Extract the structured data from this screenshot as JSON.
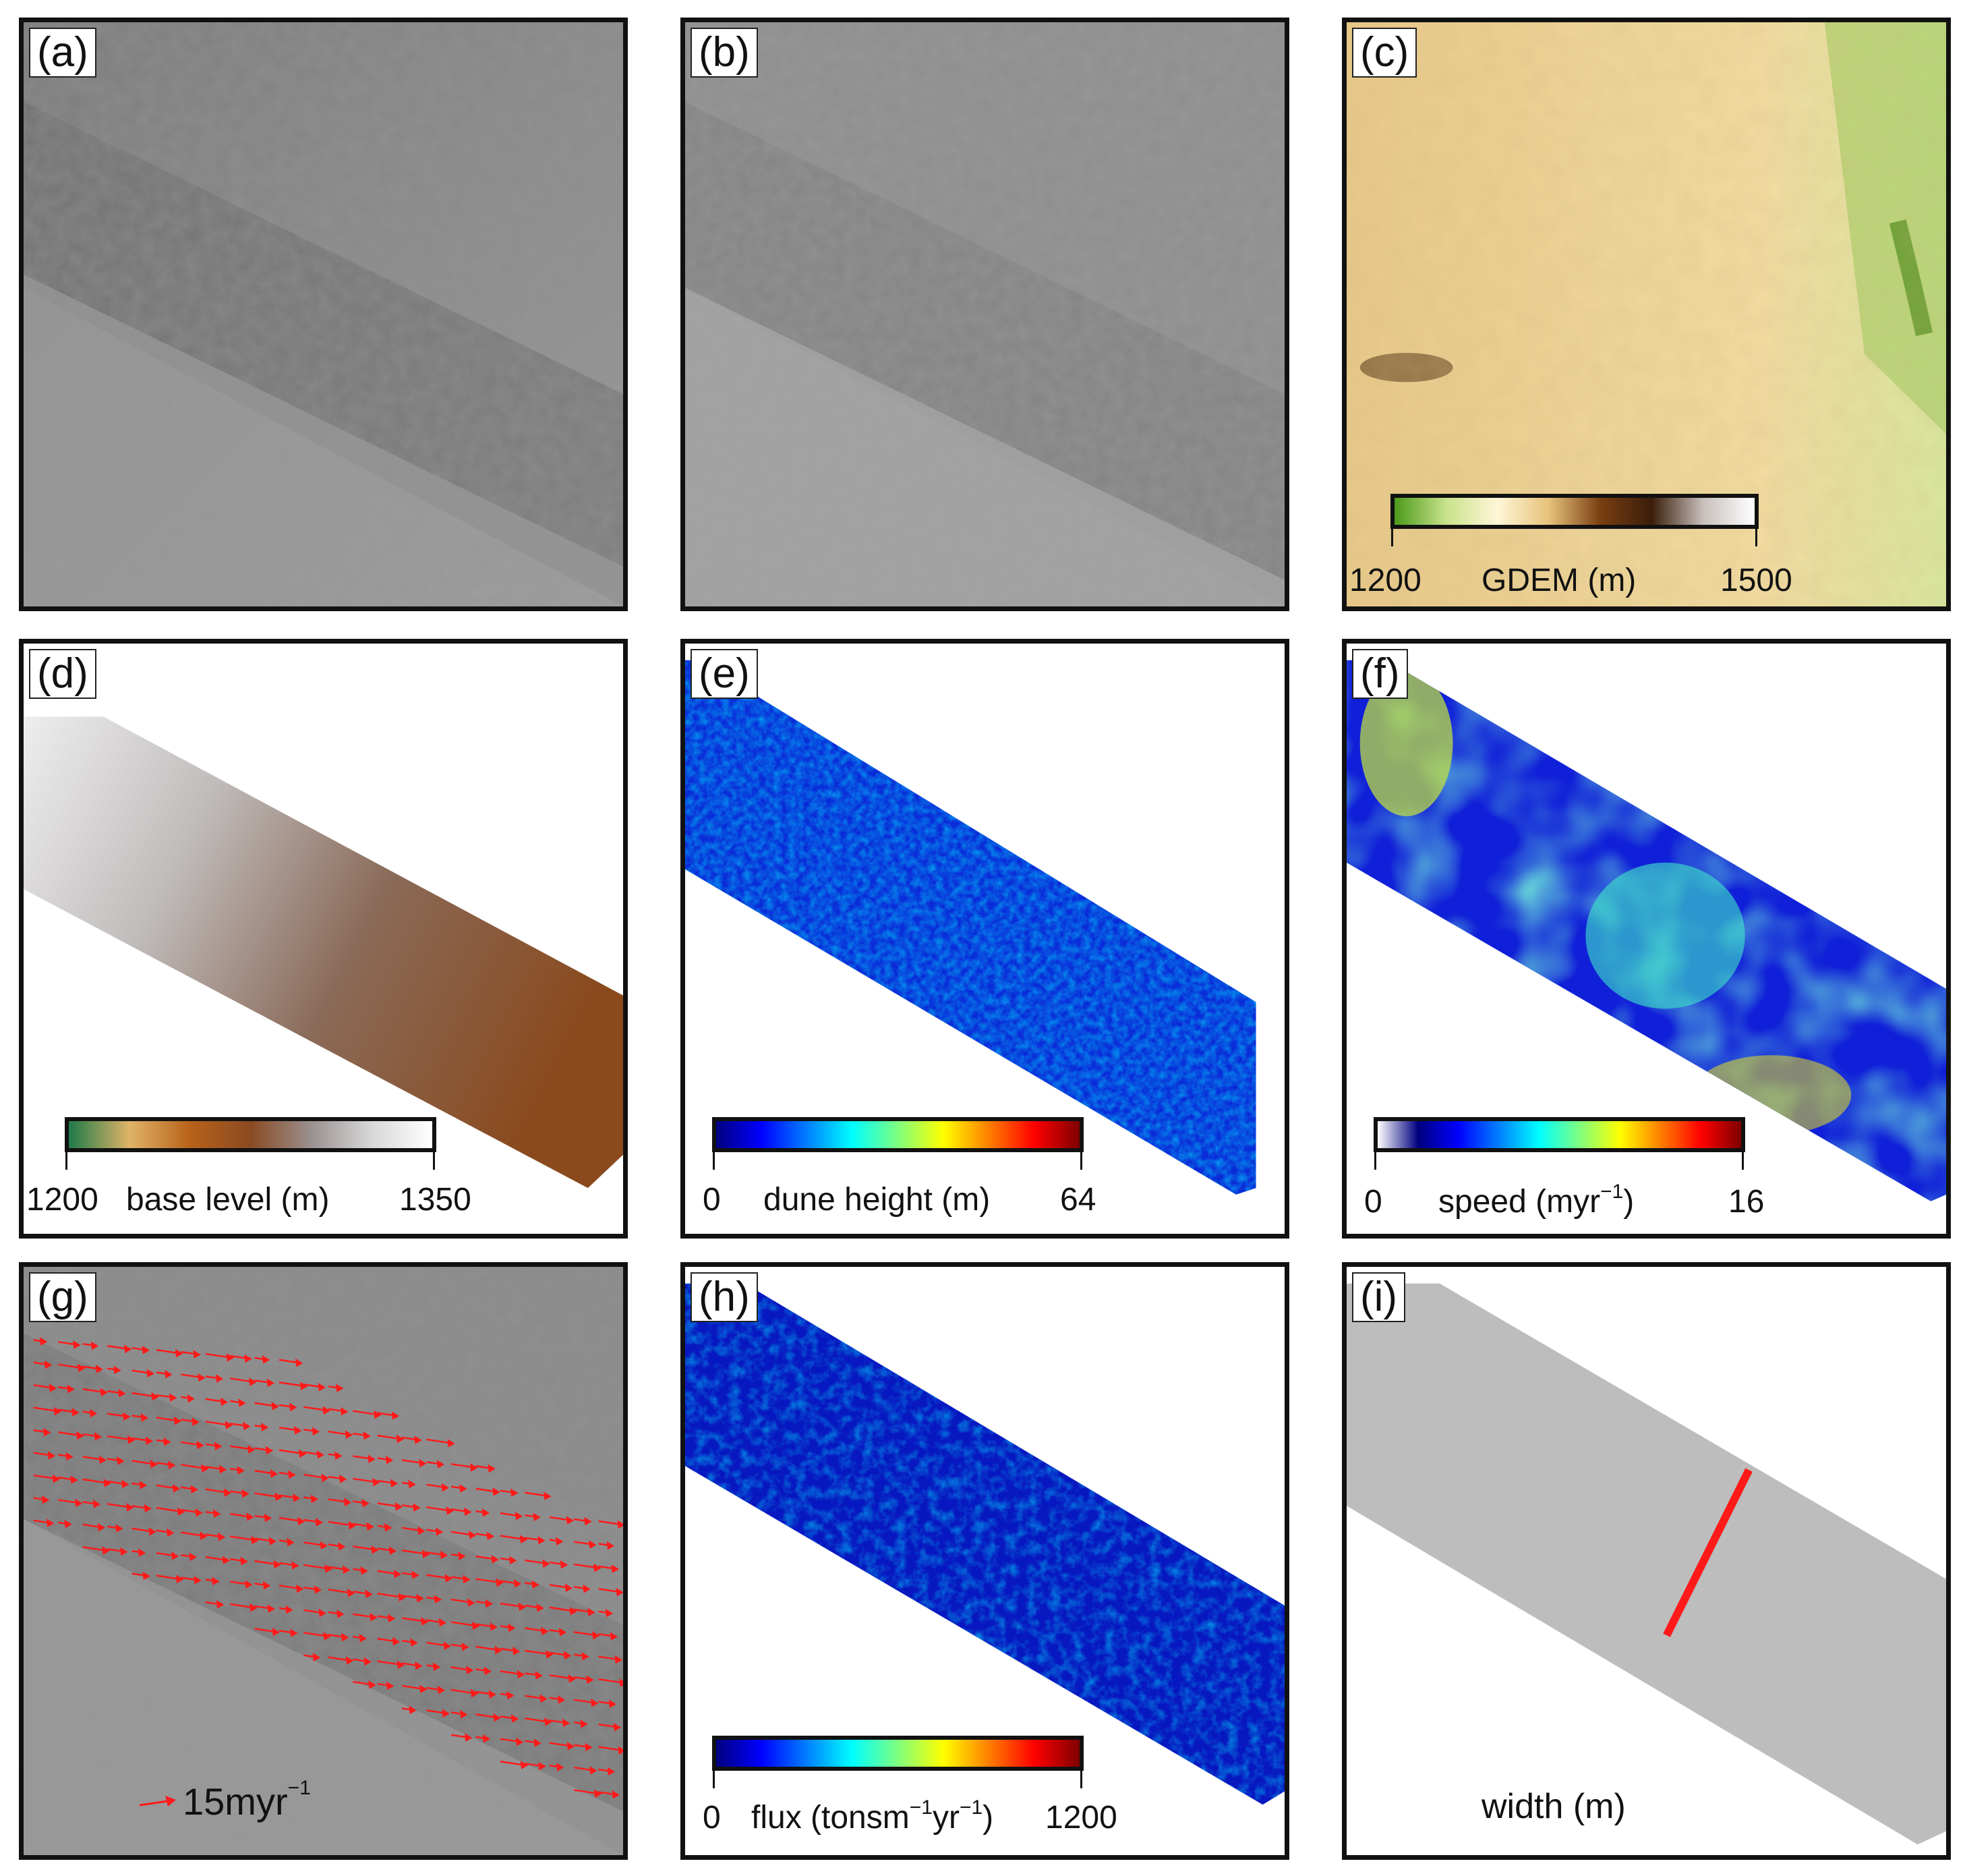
{
  "panels": [
    {
      "id": "a",
      "label": "(a)"
    },
    {
      "id": "b",
      "label": "(b)"
    },
    {
      "id": "c",
      "label": "(c)",
      "colorbar": {
        "min": "1200",
        "max": "1500",
        "title": "GDEM (m)",
        "stops": [
          "#4a9a1a",
          "#c8e28a",
          "#fff6d8",
          "#e6c27a",
          "#7a3e12",
          "#3a1e0a",
          "#c8c0bc",
          "#ffffff"
        ]
      }
    },
    {
      "id": "d",
      "label": "(d)",
      "colorbar": {
        "min": "1200",
        "max": "1350",
        "title": "base level (m)",
        "stops": [
          "#1e7a48",
          "#e0b468",
          "#b8621a",
          "#8a4a22",
          "#9a9090",
          "#d8d8d8",
          "#ffffff"
        ]
      }
    },
    {
      "id": "e",
      "label": "(e)",
      "colorbar": {
        "min": "0",
        "max": "64",
        "title": "dune height (m)",
        "stops": [
          "#00007f",
          "#0000ff",
          "#007fff",
          "#00ffff",
          "#7fff7f",
          "#ffff00",
          "#ff7f00",
          "#ff0000",
          "#7f0000"
        ]
      }
    },
    {
      "id": "f",
      "label": "(f)",
      "colorbar": {
        "min": "0",
        "max": "16",
        "title_main": "speed (myr",
        "title_sup": "−1",
        "title_end": ")",
        "stops": [
          "#ffffff",
          "#00007f",
          "#0000ff",
          "#007fff",
          "#00ffff",
          "#7fff7f",
          "#ffff00",
          "#ff7f00",
          "#ff0000",
          "#7f0000"
        ]
      }
    },
    {
      "id": "g",
      "label": "(g)",
      "arrow_scale": {
        "main": "15myr",
        "sup": "−1",
        "color": "#ff0000"
      }
    },
    {
      "id": "h",
      "label": "(h)",
      "colorbar": {
        "min": "0",
        "max": "1200",
        "title_main": "flux (tonsm",
        "title_sup": "−1",
        "title_mid": "yr",
        "title_sup2": "−1",
        "title_end": ")",
        "stops": [
          "#00007f",
          "#0000ff",
          "#007fff",
          "#00ffff",
          "#7fff7f",
          "#ffff00",
          "#ff7f00",
          "#ff0000",
          "#7f0000"
        ]
      }
    },
    {
      "id": "i",
      "label": "(i)",
      "width_label": "width (m)",
      "line_color": "#ff0000"
    }
  ]
}
